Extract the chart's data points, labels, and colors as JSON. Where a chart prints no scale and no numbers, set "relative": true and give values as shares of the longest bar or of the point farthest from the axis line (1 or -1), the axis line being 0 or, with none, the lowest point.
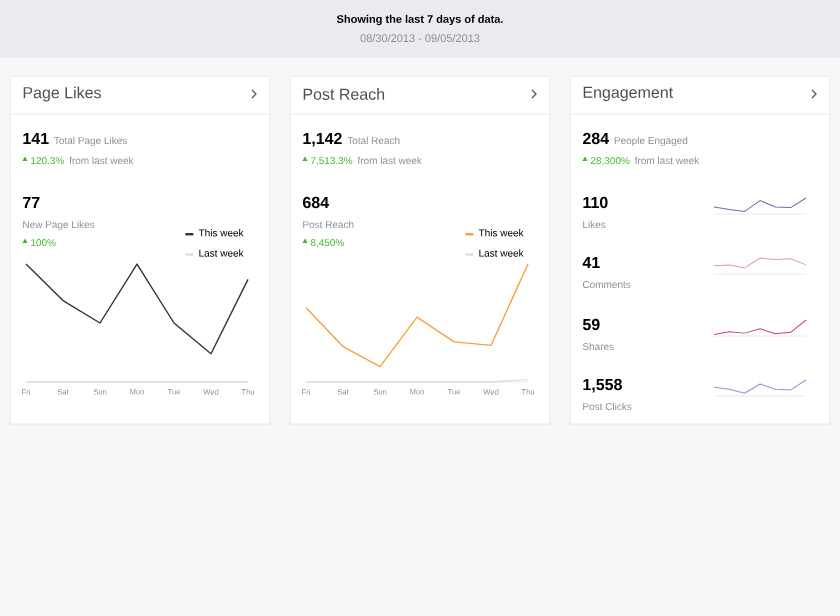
{
  "chart_data": [
    {
      "type": "other",
      "title": "Showing the last 7 days of data.",
      "subtitle": "08/30/2013 - 09/05/2013"
    },
    {
      "type": "line",
      "relative": true,
      "title": "Page Likes",
      "categories": [
        "Fri",
        "Sat",
        "Sun",
        "Mon",
        "Tue",
        "Wed",
        "Thu"
      ],
      "series": [
        {
          "name": "This week",
          "color": "#333333",
          "values": [
            1,
            0.69,
            0.5,
            1,
            0.5,
            0.24,
            0.87
          ]
        },
        {
          "name": "Last week",
          "color": "#dddddd",
          "values": [
            0,
            0,
            0,
            0,
            0,
            0,
            0
          ]
        }
      ],
      "legend": "top right",
      "annotations": [
        "141",
        "Total Page Likes",
        "120.3%",
        "from last week",
        "77",
        "New Page Likes",
        "100%"
      ]
    },
    {
      "type": "line",
      "relative": true,
      "title": "Post Reach",
      "categories": [
        "Fri",
        "Sat",
        "Sun",
        "Mon",
        "Tue",
        "Wed",
        "Thu"
      ],
      "series": [
        {
          "name": "This week",
          "color": "#f5a142",
          "values": [
            0.63,
            0.3,
            0.13,
            0.55,
            0.34,
            0.31,
            1
          ]
        },
        {
          "name": "Last week",
          "color": "#dddddd",
          "values": [
            0,
            0,
            0,
            0,
            0,
            0,
            0.02
          ]
        }
      ],
      "legend": "top right",
      "annotations": [
        "1,142",
        "Total Reach",
        "7,513.3%",
        "from last week",
        "684",
        "Post Reach",
        "8,450%"
      ]
    },
    {
      "type": "other",
      "title": "Engagement",
      "annotations": [
        "284",
        "People Engaged",
        "28,300%",
        "from last week"
      ]
    },
    {
      "type": "line",
      "relative": true,
      "categories": [
        null,
        null,
        null,
        null,
        null,
        null,
        null
      ],
      "color": "#6b6fa8",
      "values": [
        0.44,
        0.28,
        0.16,
        0.84,
        0.44,
        0.4,
        1
      ],
      "annotations": [
        "110",
        "Likes"
      ]
    },
    {
      "type": "line",
      "relative": true,
      "categories": [
        null,
        null,
        null,
        null,
        null,
        null,
        null
      ],
      "color": "#e89aac",
      "values": [
        0.52,
        0.57,
        0.38,
        1,
        0.9,
        0.95,
        0.57
      ],
      "annotations": [
        "41",
        "Comments"
      ]
    },
    {
      "type": "line",
      "relative": true,
      "categories": [
        null,
        null,
        null,
        null,
        null,
        null,
        null
      ],
      "color": "#c8436a",
      "values": [
        0.09,
        0.27,
        0.18,
        0.45,
        0.14,
        0.23,
        1
      ],
      "annotations": [
        "59",
        "Shares"
      ]
    },
    {
      "type": "line",
      "relative": true,
      "categories": [
        null,
        null,
        null,
        null,
        null,
        null,
        null
      ],
      "color": "#8a96d8",
      "values": [
        0.54,
        0.42,
        0.17,
        0.75,
        0.42,
        0.38,
        1
      ],
      "annotations": [
        "1,558",
        "Post Clicks"
      ]
    }
  ]
}
